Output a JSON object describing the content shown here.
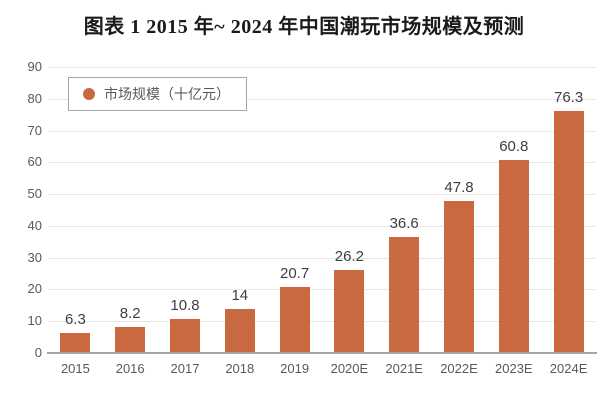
{
  "page": {
    "title": "图表 1  2015 年~ 2024 年中国潮玩市场规模及预测"
  },
  "legend": {
    "label": "市场规模（十亿元）"
  },
  "chart_data": {
    "type": "bar",
    "title": "图表 1  2015 年~ 2024 年中国潮玩市场规模及预测",
    "series_name": "市场规模（十亿元）",
    "categories": [
      "2015",
      "2016",
      "2017",
      "2018",
      "2019",
      "2020E",
      "2021E",
      "2022E",
      "2023E",
      "2024E"
    ],
    "values": [
      6.3,
      8.2,
      10.8,
      14,
      20.7,
      26.2,
      36.6,
      47.8,
      60.8,
      76.3
    ],
    "value_labels": [
      "6.3",
      "8.2",
      "10.8",
      "14",
      "20.7",
      "26.2",
      "36.6",
      "47.8",
      "60.8",
      "76.3"
    ],
    "xlabel": "",
    "ylabel": "",
    "ylim": [
      0,
      90
    ],
    "yticks": [
      0,
      10,
      20,
      30,
      40,
      50,
      60,
      70,
      80,
      90
    ],
    "grid": true,
    "legend_position": "top-left",
    "colors": {
      "bar": "#c8693f",
      "grid": "#e6e6e6",
      "axis_line": "#a6a6a6",
      "tick_label": "#595959",
      "value_label": "#3f3f3f",
      "title": "#1a1a1a"
    }
  }
}
